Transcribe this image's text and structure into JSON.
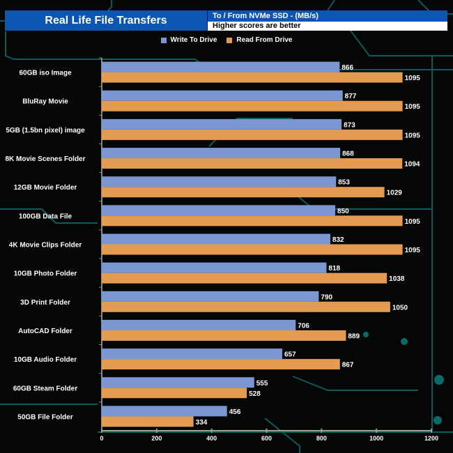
{
  "header": {
    "title": "Real Life File Transfers",
    "subtitle": "To /  From NVMe  SSD - (MB/s)",
    "note": "Higher scores are better"
  },
  "chart_data": {
    "type": "bar",
    "orientation": "horizontal",
    "categories": [
      "60GB iso Image",
      "BluRay Movie",
      "5GB (1.5bn pixel) image",
      "8K Movie Scenes Folder",
      "12GB Movie Folder",
      "100GB Data File",
      "4K Movie Clips Folder",
      "10GB Photo Folder",
      "3D Print Folder",
      "AutoCAD Folder",
      "10GB Audio Folder",
      "60GB Steam Folder",
      "50GB File Folder"
    ],
    "series": [
      {
        "name": "Write To  Drive",
        "color": "#7b97d2",
        "values": [
          866,
          877,
          873,
          868,
          853,
          850,
          832,
          818,
          790,
          706,
          657,
          555,
          456
        ]
      },
      {
        "name": "Read From  Drive",
        "color": "#e39b52",
        "values": [
          1095,
          1095,
          1095,
          1094,
          1029,
          1095,
          1095,
          1038,
          1050,
          889,
          867,
          528,
          334
        ]
      }
    ],
    "xlim": [
      0,
      1200
    ],
    "xticks": [
      "0",
      "200",
      "400",
      "600",
      "800",
      "1000",
      "1200"
    ],
    "legend": "top-center",
    "grid": false
  }
}
